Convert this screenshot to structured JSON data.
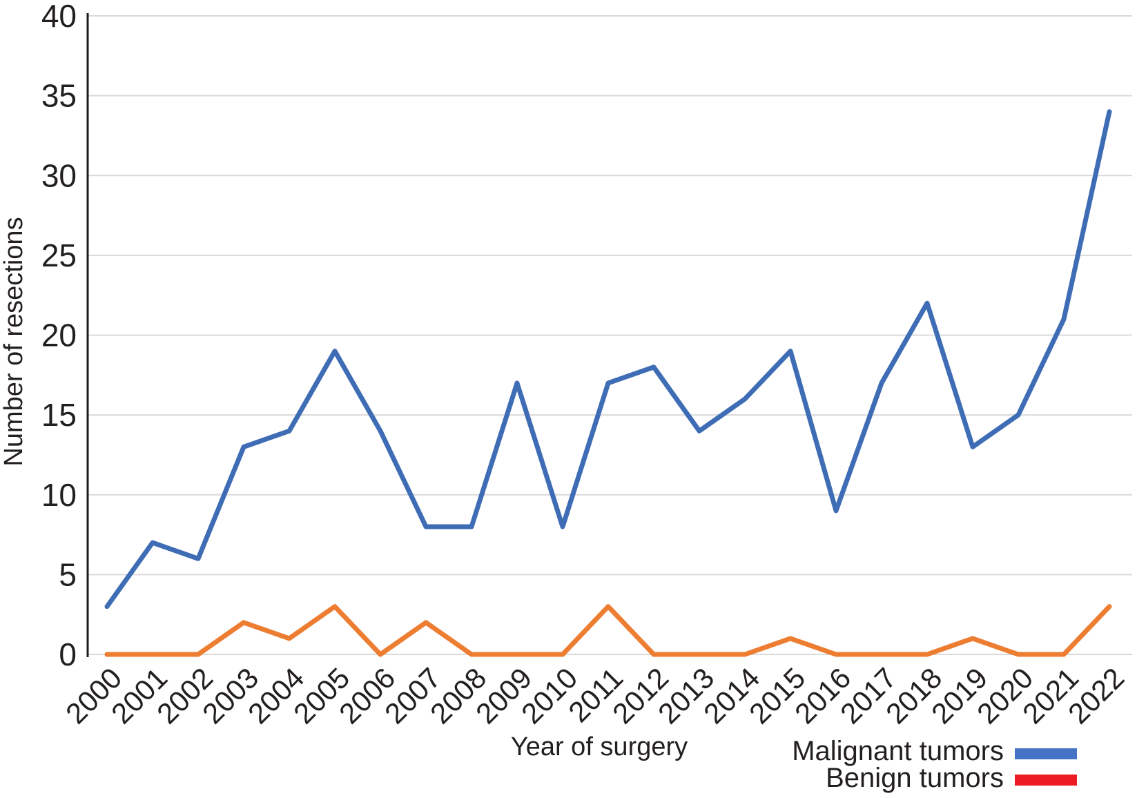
{
  "chart_data": {
    "type": "line",
    "categories": [
      "2000",
      "2001",
      "2002",
      "2003",
      "2004",
      "2005",
      "2006",
      "2007",
      "2008",
      "2009",
      "2010",
      "2011",
      "2012",
      "2013",
      "2014",
      "2015",
      "2016",
      "2017",
      "2018",
      "2019",
      "2020",
      "2021",
      "2022"
    ],
    "series": [
      {
        "name": "Malignant tumors",
        "line_color": "#3f6db5",
        "legend_swatch_color": "#4472c4",
        "values": [
          3,
          7,
          6,
          13,
          14,
          19,
          14,
          8,
          8,
          17,
          8,
          17,
          18,
          14,
          16,
          19,
          9,
          17,
          22,
          13,
          15,
          21,
          34
        ]
      },
      {
        "name": "Benign tumors",
        "line_color": "#ed7d31",
        "legend_swatch_color": "#ec1b24",
        "values": [
          0,
          0,
          0,
          2,
          1,
          3,
          0,
          2,
          0,
          0,
          0,
          3,
          0,
          0,
          0,
          1,
          0,
          0,
          0,
          1,
          0,
          0,
          3
        ]
      }
    ],
    "xlabel": "Year of surgery",
    "ylabel": "Number of resections",
    "ylim": [
      0,
      40
    ],
    "y_ticks": [
      0,
      5,
      10,
      15,
      20,
      25,
      30,
      35,
      40
    ],
    "grid": "horizontal",
    "legend_position": "bottom-right",
    "axis_color": "#1c1c1e",
    "gridline_color": "#d9d9d9",
    "text_color": "#231f20"
  }
}
